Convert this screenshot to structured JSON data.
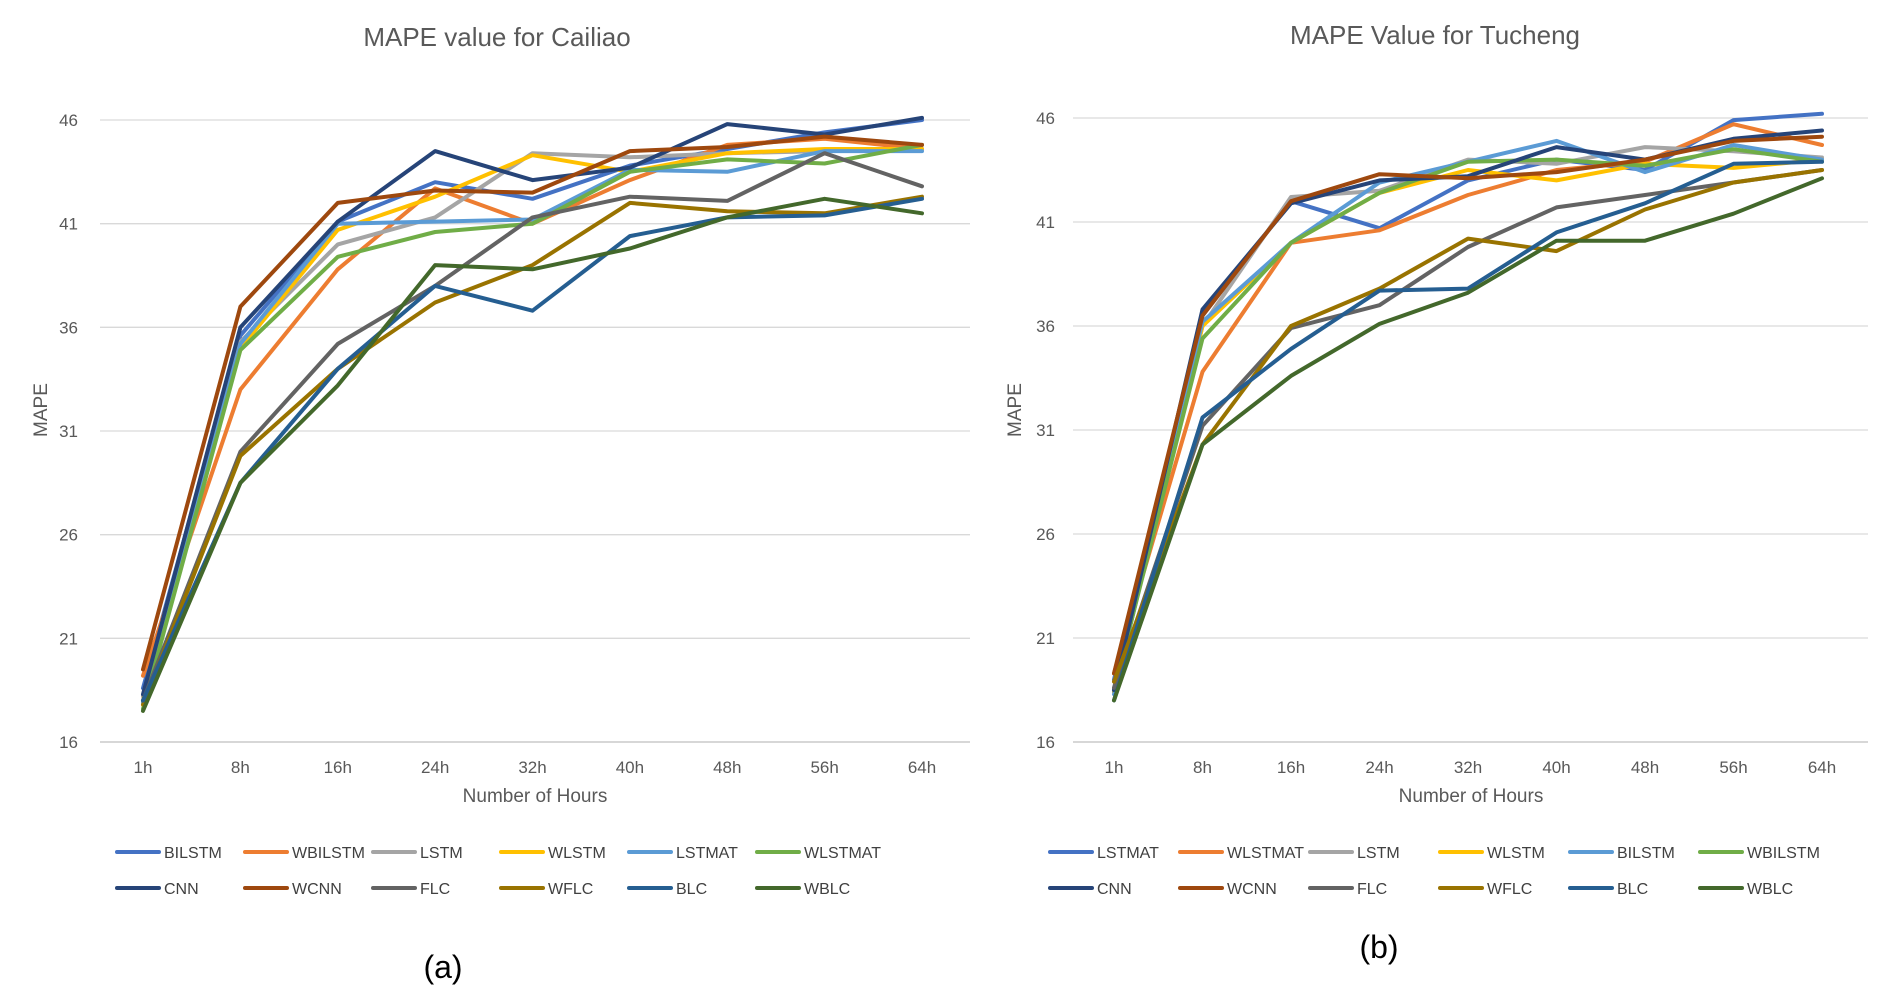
{
  "chart_data": [
    {
      "type": "line",
      "title": "MAPE value for Cailiao",
      "xlabel": "Number of Hours",
      "ylabel": "MAPE",
      "panel_label": "(a)",
      "categories": [
        "1h",
        "8h",
        "16h",
        "24h",
        "32h",
        "40h",
        "48h",
        "56h",
        "64h"
      ],
      "yticks": [
        "16",
        "21",
        "26",
        "31",
        "36",
        "41",
        "46"
      ],
      "ylim": [
        16,
        46
      ],
      "grid": true,
      "legend_position": "bottom",
      "series": [
        {
          "name": "BILSTM",
          "color": "#4472C4",
          "values": [
            18.6,
            35.6,
            41.1,
            43.0,
            42.2,
            43.8,
            44.6,
            45.4,
            46.0
          ]
        },
        {
          "name": "WBILSTM",
          "color": "#ED7D31",
          "values": [
            19.2,
            33.0,
            38.8,
            42.7,
            41.0,
            43.1,
            44.8,
            45.1,
            44.6
          ]
        },
        {
          "name": "LSTM",
          "color": "#A5A5A5",
          "values": [
            18.2,
            35.3,
            40.0,
            41.3,
            44.4,
            44.2,
            44.4,
            44.5,
            44.6
          ]
        },
        {
          "name": "WLSTM",
          "color": "#FFC000",
          "values": [
            18.0,
            35.0,
            40.7,
            42.3,
            44.3,
            43.5,
            44.4,
            44.6,
            44.6
          ]
        },
        {
          "name": "LSTMAT",
          "color": "#5B9BD5",
          "values": [
            17.9,
            35.2,
            41.0,
            41.1,
            41.2,
            43.6,
            43.5,
            44.5,
            44.5
          ]
        },
        {
          "name": "WLSTMAT",
          "color": "#70AD47",
          "values": [
            17.6,
            34.9,
            39.4,
            40.6,
            41.0,
            43.5,
            44.1,
            43.9,
            44.8
          ]
        },
        {
          "name": "CNN",
          "color": "#264478",
          "values": [
            18.3,
            36.0,
            41.1,
            44.5,
            43.1,
            43.7,
            45.8,
            45.3,
            46.1
          ]
        },
        {
          "name": "WCNN",
          "color": "#9E480E",
          "values": [
            19.5,
            37.0,
            42.0,
            42.6,
            42.5,
            44.5,
            44.7,
            45.2,
            44.8
          ]
        },
        {
          "name": "FLC",
          "color": "#636363",
          "values": [
            18.0,
            30.0,
            35.2,
            38.0,
            41.3,
            42.3,
            42.1,
            44.4,
            42.8
          ]
        },
        {
          "name": "WFLC",
          "color": "#997300",
          "values": [
            17.8,
            29.8,
            34.0,
            37.2,
            39.0,
            42.0,
            41.6,
            41.5,
            42.3
          ]
        },
        {
          "name": "BLC",
          "color": "#255E91",
          "values": [
            18.0,
            28.5,
            34.0,
            38.0,
            36.8,
            40.4,
            41.3,
            41.4,
            42.2
          ]
        },
        {
          "name": "WBLC",
          "color": "#43682B",
          "values": [
            17.5,
            28.5,
            33.2,
            39.0,
            38.8,
            39.8,
            41.3,
            42.2,
            41.5
          ]
        }
      ]
    },
    {
      "type": "line",
      "title": "MAPE Value for Tucheng",
      "xlabel": "Number of Hours",
      "ylabel": "MAPE",
      "panel_label": "(b)",
      "categories": [
        "1h",
        "8h",
        "16h",
        "24h",
        "32h",
        "40h",
        "48h",
        "56h",
        "64h"
      ],
      "yticks": [
        "16",
        "21",
        "26",
        "31",
        "36",
        "41",
        "46"
      ],
      "ylim": [
        16,
        46
      ],
      "grid": true,
      "legend_position": "bottom",
      "series": [
        {
          "name": "LSTMAT",
          "color": "#4472C4",
          "values": [
            19.0,
            36.5,
            42.0,
            40.7,
            43.0,
            44.0,
            43.5,
            45.9,
            46.2
          ]
        },
        {
          "name": "WLSTMAT",
          "color": "#ED7D31",
          "values": [
            19.3,
            33.8,
            40.0,
            40.6,
            42.3,
            43.5,
            43.9,
            45.7,
            44.7
          ]
        },
        {
          "name": "LSTM",
          "color": "#A5A5A5",
          "values": [
            18.6,
            36.0,
            42.2,
            42.5,
            44.0,
            43.8,
            44.6,
            44.4,
            44.1
          ]
        },
        {
          "name": "WLSTM",
          "color": "#FFC000",
          "values": [
            18.4,
            36.0,
            40.0,
            42.4,
            43.5,
            43.0,
            43.8,
            43.6,
            44.0
          ]
        },
        {
          "name": "BILSTM",
          "color": "#5B9BD5",
          "values": [
            18.3,
            36.2,
            40.0,
            42.9,
            43.9,
            44.9,
            43.4,
            44.7,
            44.0
          ]
        },
        {
          "name": "WBILSTM",
          "color": "#70AD47",
          "values": [
            18.5,
            35.4,
            40.0,
            42.4,
            43.9,
            44.0,
            43.7,
            44.5,
            43.9
          ]
        },
        {
          "name": "CNN",
          "color": "#264478",
          "values": [
            18.5,
            36.8,
            41.9,
            43.0,
            43.2,
            44.6,
            44.0,
            45.0,
            45.4
          ]
        },
        {
          "name": "WCNN",
          "color": "#9E480E",
          "values": [
            19.3,
            36.5,
            42.0,
            43.3,
            43.1,
            43.4,
            44.0,
            44.9,
            45.1
          ]
        },
        {
          "name": "FLC",
          "color": "#636363",
          "values": [
            18.6,
            31.2,
            35.9,
            37.0,
            39.8,
            41.7,
            42.3,
            42.9,
            43.5
          ]
        },
        {
          "name": "WFLC",
          "color": "#997300",
          "values": [
            18.9,
            30.3,
            36.0,
            37.8,
            40.2,
            39.6,
            41.6,
            42.9,
            43.5
          ]
        },
        {
          "name": "BLC",
          "color": "#255E91",
          "values": [
            18.0,
            31.6,
            34.9,
            37.7,
            37.8,
            40.5,
            41.9,
            43.8,
            43.9
          ]
        },
        {
          "name": "WBLC",
          "color": "#43682B",
          "values": [
            18.0,
            30.3,
            33.6,
            36.1,
            37.6,
            40.1,
            40.1,
            41.4,
            43.1
          ]
        }
      ]
    }
  ]
}
